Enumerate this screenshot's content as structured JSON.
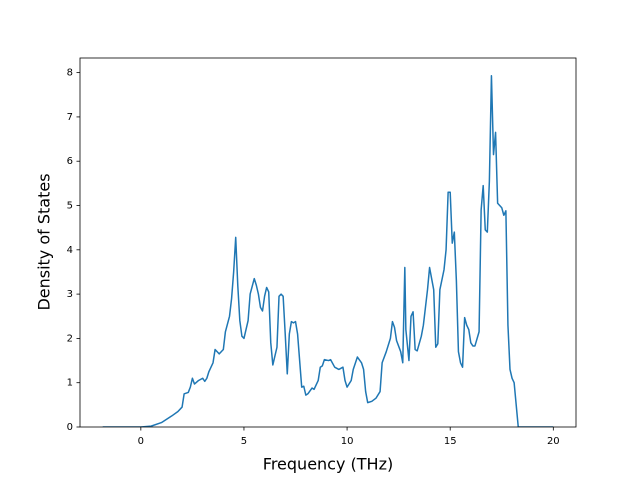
{
  "chart_data": {
    "type": "line",
    "xlabel": "Frequency (THz)",
    "ylabel": "Density of States",
    "xlim": [
      -2.95,
      21.1
    ],
    "ylim": [
      0,
      8.33
    ],
    "xticks": [
      0,
      5,
      10,
      15,
      20
    ],
    "yticks": [
      0,
      1,
      2,
      3,
      4,
      5,
      6,
      7,
      8
    ],
    "grid": false,
    "series": [
      {
        "color": "#1f77b4",
        "x": [
          -1.85,
          0,
          0.5,
          1.0,
          1.5,
          1.8,
          2.0,
          2.1,
          2.3,
          2.4,
          2.5,
          2.6,
          2.8,
          3.0,
          3.1,
          3.2,
          3.3,
          3.5,
          3.6,
          3.8,
          4.0,
          4.1,
          4.3,
          4.4,
          4.5,
          4.6,
          4.7,
          4.8,
          4.9,
          5.0,
          5.2,
          5.3,
          5.5,
          5.6,
          5.7,
          5.8,
          5.9,
          6.0,
          6.1,
          6.2,
          6.3,
          6.4,
          6.6,
          6.7,
          6.8,
          6.9,
          7.0,
          7.1,
          7.2,
          7.3,
          7.4,
          7.5,
          7.6,
          7.8,
          7.9,
          8.0,
          8.1,
          8.3,
          8.4,
          8.6,
          8.7,
          8.8,
          8.9,
          9.1,
          9.2,
          9.4,
          9.6,
          9.8,
          9.9,
          10.0,
          10.2,
          10.3,
          10.5,
          10.7,
          10.8,
          10.9,
          11.0,
          11.2,
          11.4,
          11.6,
          11.7,
          11.9,
          12.1,
          12.2,
          12.3,
          12.4,
          12.6,
          12.7,
          12.8,
          12.85,
          13.0,
          13.1,
          13.2,
          13.3,
          13.4,
          13.6,
          13.7,
          13.9,
          14.0,
          14.2,
          14.3,
          14.4,
          14.5,
          14.7,
          14.8,
          14.9,
          15.0,
          15.1,
          15.2,
          15.3,
          15.4,
          15.5,
          15.6,
          15.7,
          15.8,
          15.9,
          16.0,
          16.1,
          16.2,
          16.4,
          16.5,
          16.6,
          16.7,
          16.8,
          16.9,
          17.0,
          17.1,
          17.2,
          17.3,
          17.5,
          17.6,
          17.7,
          17.8,
          17.9,
          18.0,
          18.1,
          18.3,
          20
        ],
        "values": [
          0,
          0,
          0.02,
          0.1,
          0.25,
          0.35,
          0.45,
          0.75,
          0.78,
          0.9,
          1.1,
          0.97,
          1.05,
          1.1,
          1.03,
          1.1,
          1.25,
          1.45,
          1.75,
          1.65,
          1.75,
          2.15,
          2.5,
          2.9,
          3.5,
          4.28,
          3.2,
          2.4,
          2.05,
          2.0,
          2.4,
          3.0,
          3.35,
          3.2,
          3.0,
          2.7,
          2.62,
          2.95,
          3.15,
          3.05,
          1.9,
          1.4,
          1.8,
          2.95,
          3.0,
          2.95,
          2.1,
          1.2,
          2.1,
          2.38,
          2.35,
          2.38,
          2.1,
          0.9,
          0.92,
          0.72,
          0.75,
          0.88,
          0.85,
          1.05,
          1.35,
          1.38,
          1.52,
          1.5,
          1.52,
          1.35,
          1.3,
          1.35,
          1.05,
          0.9,
          1.05,
          1.3,
          1.58,
          1.45,
          1.3,
          0.8,
          0.55,
          0.58,
          0.65,
          0.8,
          1.45,
          1.7,
          2.0,
          2.38,
          2.25,
          1.95,
          1.7,
          1.45,
          3.6,
          2.2,
          1.5,
          2.5,
          2.6,
          1.75,
          1.72,
          2.05,
          2.3,
          3.1,
          3.6,
          3.1,
          1.8,
          1.88,
          3.1,
          3.55,
          4.0,
          5.3,
          5.3,
          4.15,
          4.4,
          3.3,
          1.7,
          1.45,
          1.35,
          2.47,
          2.3,
          2.2,
          1.9,
          1.83,
          1.83,
          2.15,
          4.9,
          5.45,
          4.45,
          4.4,
          5.55,
          7.93,
          6.15,
          6.65,
          5.05,
          4.95,
          4.78,
          4.88,
          2.3,
          1.3,
          1.1,
          1.0,
          0,
          0
        ]
      }
    ]
  }
}
